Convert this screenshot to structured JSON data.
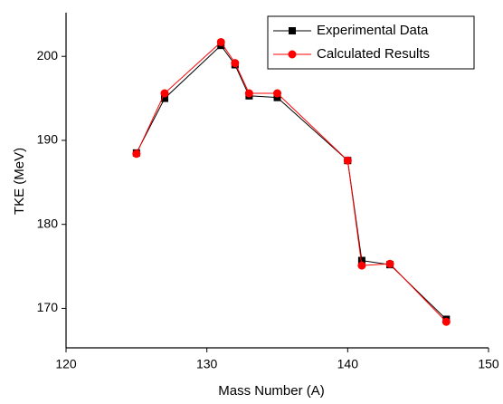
{
  "chart_data": {
    "type": "line",
    "x_label": "Mass Number (A)",
    "y_label": "TKE (MeV)",
    "x": [
      125,
      127,
      131,
      132,
      133,
      135,
      140,
      141,
      143,
      147
    ],
    "series": [
      {
        "name": "Experimental Data",
        "color": "#000000",
        "marker": "square",
        "values": [
          188.5,
          195.0,
          201.3,
          199.0,
          195.3,
          195.1,
          187.6,
          175.7,
          175.2,
          168.7
        ]
      },
      {
        "name": "Calculated Results",
        "color": "#ff0000",
        "marker": "circle",
        "values": [
          188.4,
          195.6,
          201.7,
          199.2,
          195.6,
          195.6,
          187.6,
          175.1,
          175.3,
          168.4
        ]
      }
    ],
    "xlim": [
      120,
      150
    ],
    "xticks": [
      120,
      130,
      140,
      150
    ],
    "ylim": [
      165.3,
      205.2
    ],
    "yticks": [
      170,
      180,
      190,
      200
    ],
    "legend": "upper-right",
    "grid": false
  }
}
